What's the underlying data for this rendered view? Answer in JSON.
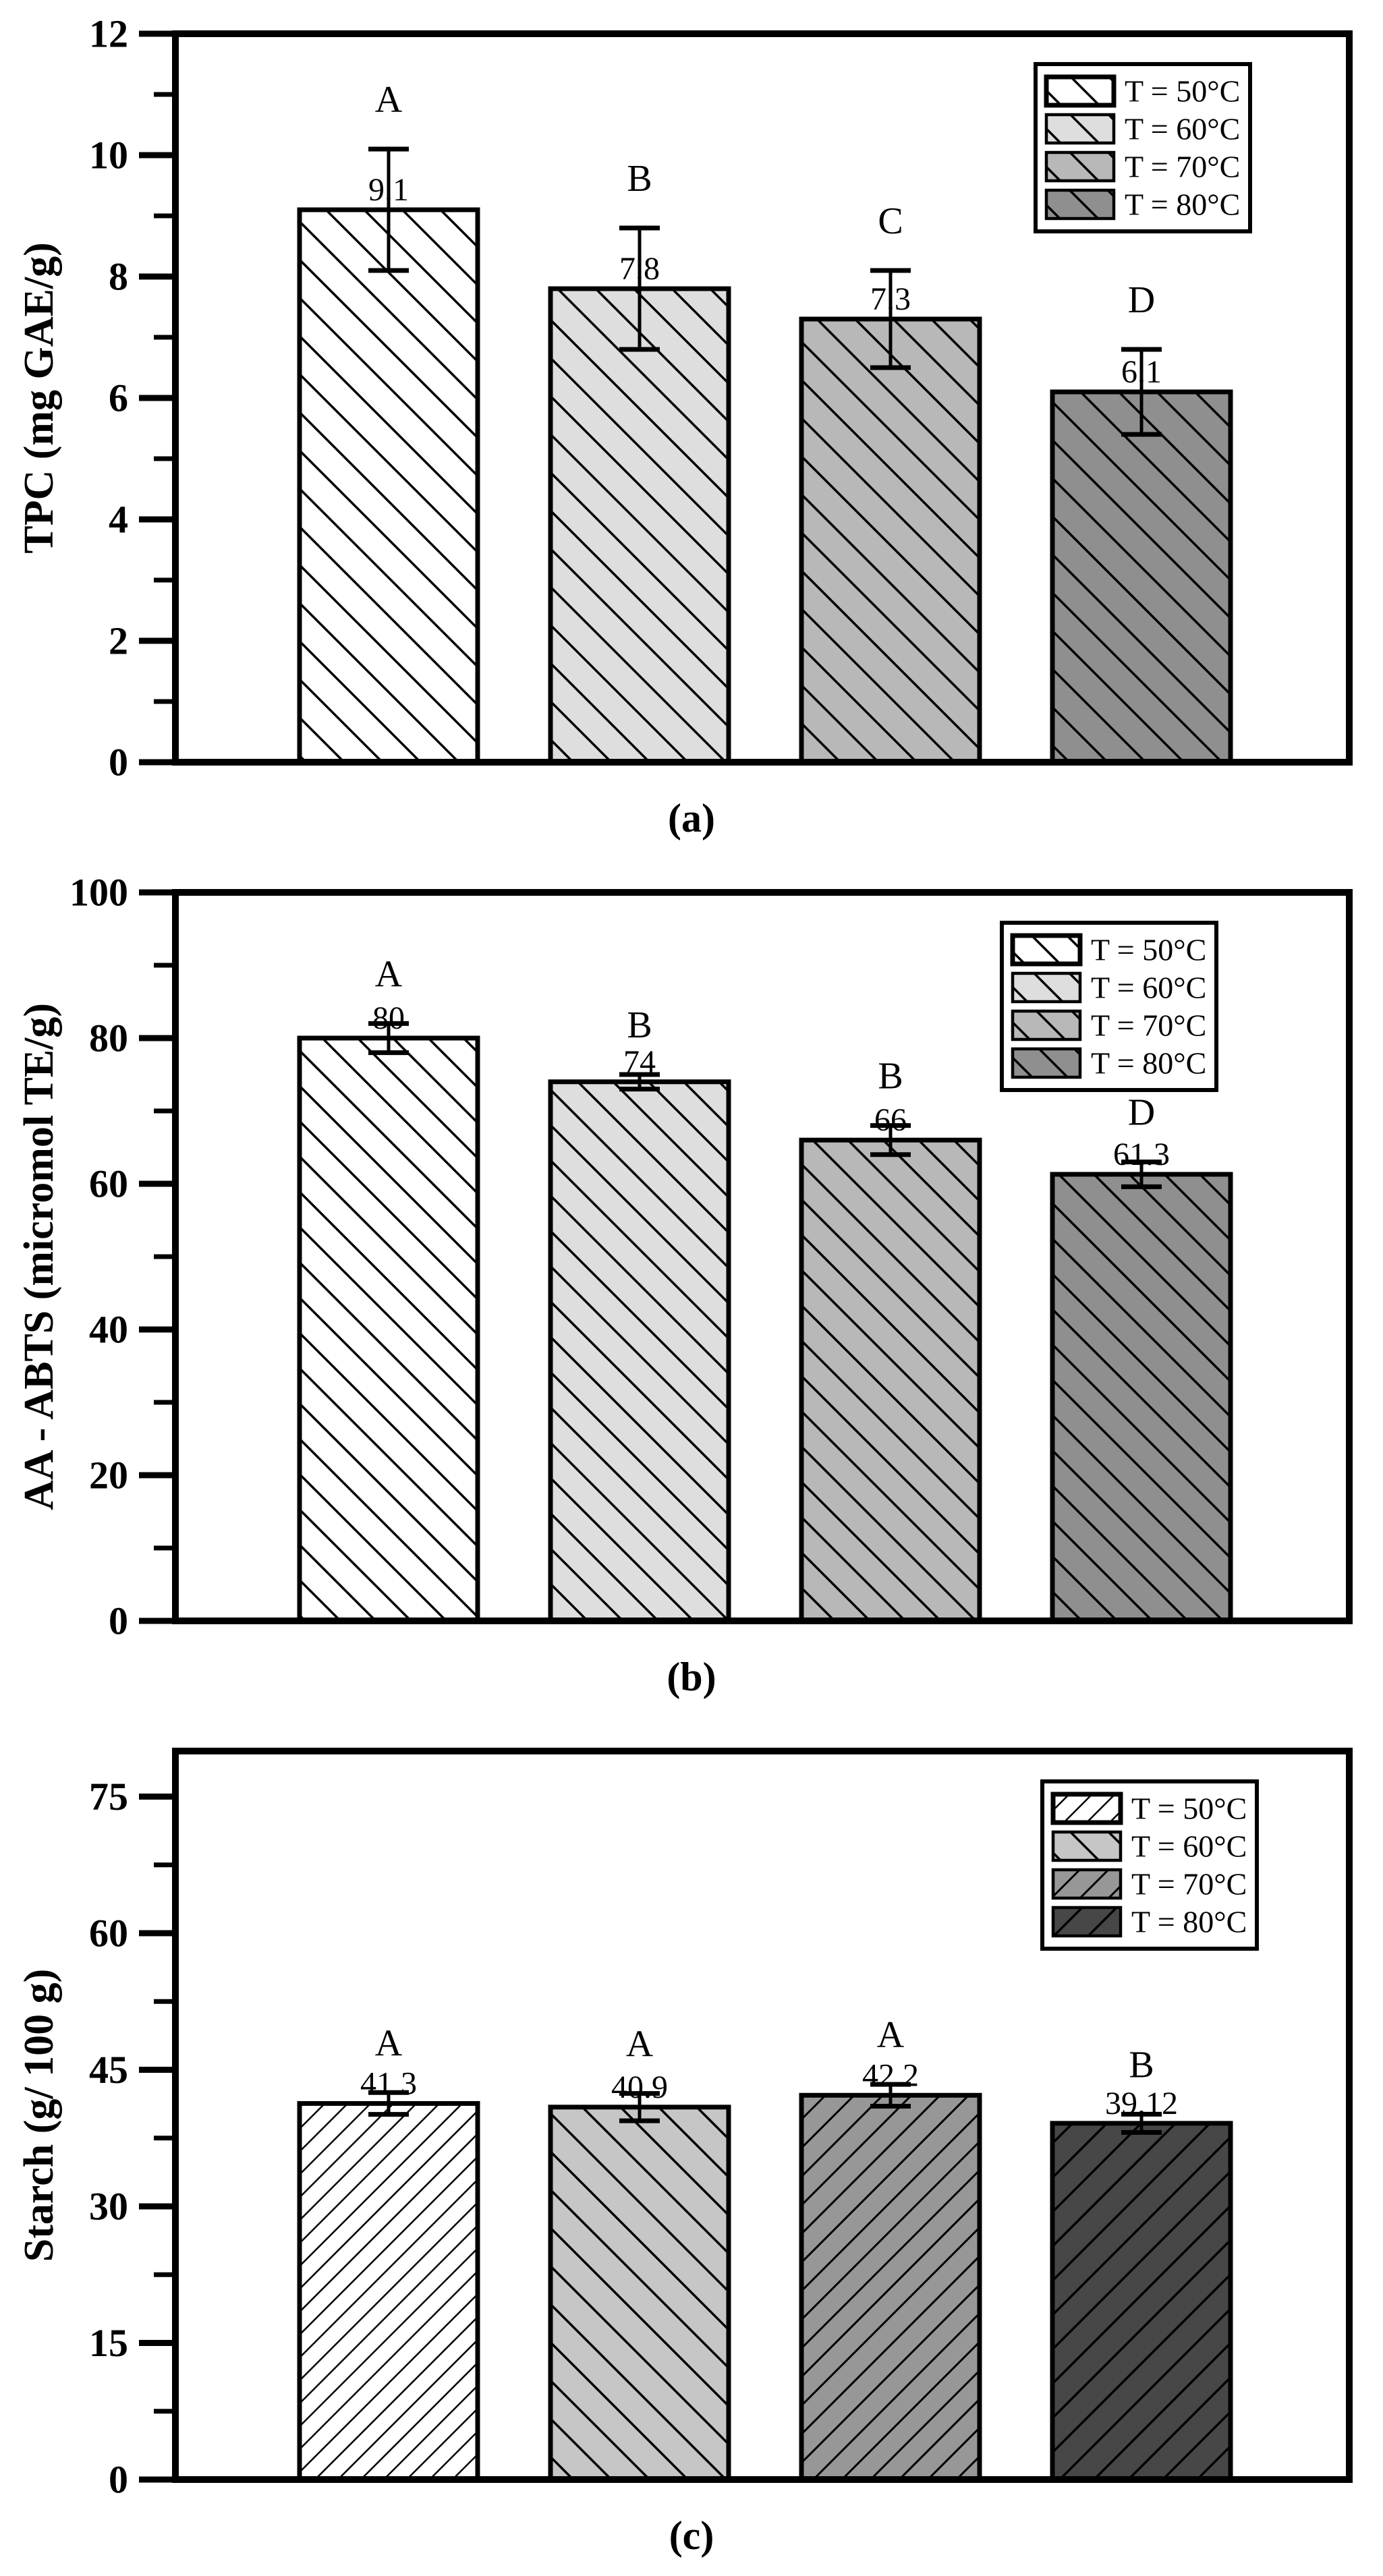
{
  "figure": {
    "panels": [
      "a",
      "b",
      "c"
    ],
    "ink_color": "#000000",
    "background": "#ffffff"
  },
  "chart_data": [
    {
      "type": "bar",
      "panel": "a",
      "caption": "(a)",
      "title": "",
      "xlabel": "",
      "ylabel": "TPC (mg GAE/g)",
      "ylim": [
        0,
        12
      ],
      "yticks": [
        0,
        2,
        4,
        6,
        8,
        10,
        12
      ],
      "minor_yticks": [
        1,
        3,
        5,
        7,
        9,
        11
      ],
      "grid": false,
      "categories": [
        "T = 50°C",
        "T = 60°C",
        "T = 70°C",
        "T = 80°C"
      ],
      "values": [
        9.1,
        7.8,
        7.3,
        6.1
      ],
      "value_labels": [
        "9.1",
        "7.8",
        "7.3",
        "6.1"
      ],
      "errors": [
        1.0,
        1.0,
        0.8,
        0.7
      ],
      "sig_letters": [
        "A",
        "B",
        "C",
        "D"
      ],
      "bar_fills": [
        "#ffffff",
        "#dedede",
        "#b8b8b8",
        "#8f8f8f"
      ],
      "hatch": [
        "\\",
        "\\",
        "\\",
        "\\"
      ],
      "legend": {
        "position": "top-right",
        "entries": [
          "T = 50°C",
          "T = 60°C",
          "T = 70°C",
          "T = 80°C"
        ]
      }
    },
    {
      "type": "bar",
      "panel": "b",
      "caption": "(b)",
      "title": "",
      "xlabel": "",
      "ylabel": "AA - ABTS (micromol TE/g)",
      "ylim": [
        0,
        100
      ],
      "yticks": [
        0,
        20,
        40,
        60,
        80,
        100
      ],
      "minor_yticks": [
        10,
        30,
        50,
        70,
        90
      ],
      "grid": false,
      "categories": [
        "T = 50°C",
        "T = 60°C",
        "T = 70°C",
        "T = 80°C"
      ],
      "values": [
        80,
        74,
        66,
        61.3
      ],
      "value_labels": [
        "80",
        "74",
        "66",
        "61.3"
      ],
      "errors": [
        2.0,
        1.0,
        2.0,
        1.7
      ],
      "sig_letters": [
        "A",
        "B",
        "B",
        "D"
      ],
      "bar_fills": [
        "#ffffff",
        "#dedede",
        "#b8b8b8",
        "#8f8f8f"
      ],
      "hatch": [
        "\\",
        "\\",
        "\\",
        "\\"
      ],
      "legend": {
        "position": "top-right",
        "entries": [
          "T = 50°C",
          "T = 60°C",
          "T = 70°C",
          "T = 80°C"
        ]
      }
    },
    {
      "type": "bar",
      "panel": "c",
      "caption": "(c)",
      "title": "",
      "xlabel": "",
      "ylabel": "Starch (g/ 100 g)",
      "ylim": [
        0,
        80
      ],
      "yticks": [
        0,
        15,
        30,
        45,
        60,
        75
      ],
      "minor_yticks": [
        7.5,
        22.5,
        37.5,
        52.5,
        67.5
      ],
      "grid": false,
      "categories": [
        "T = 50°C",
        "T = 60°C",
        "T = 70°C",
        "T = 80°C"
      ],
      "values": [
        41.3,
        40.9,
        42.2,
        39.12
      ],
      "value_labels": [
        "41.3",
        "40.9",
        "42.2",
        "39.12"
      ],
      "errors": [
        1.2,
        1.5,
        1.2,
        1.0
      ],
      "sig_letters": [
        "A",
        "A",
        "A",
        "B"
      ],
      "bar_fills": [
        "#ffffff",
        "#c6c6c6",
        "#979797",
        "#474747"
      ],
      "hatch": [
        "/",
        "\\",
        "/",
        "/"
      ],
      "legend": {
        "position": "top-right",
        "entries": [
          "T = 50°C",
          "T = 60°C",
          "T = 70°C",
          "T = 80°C"
        ]
      }
    }
  ]
}
